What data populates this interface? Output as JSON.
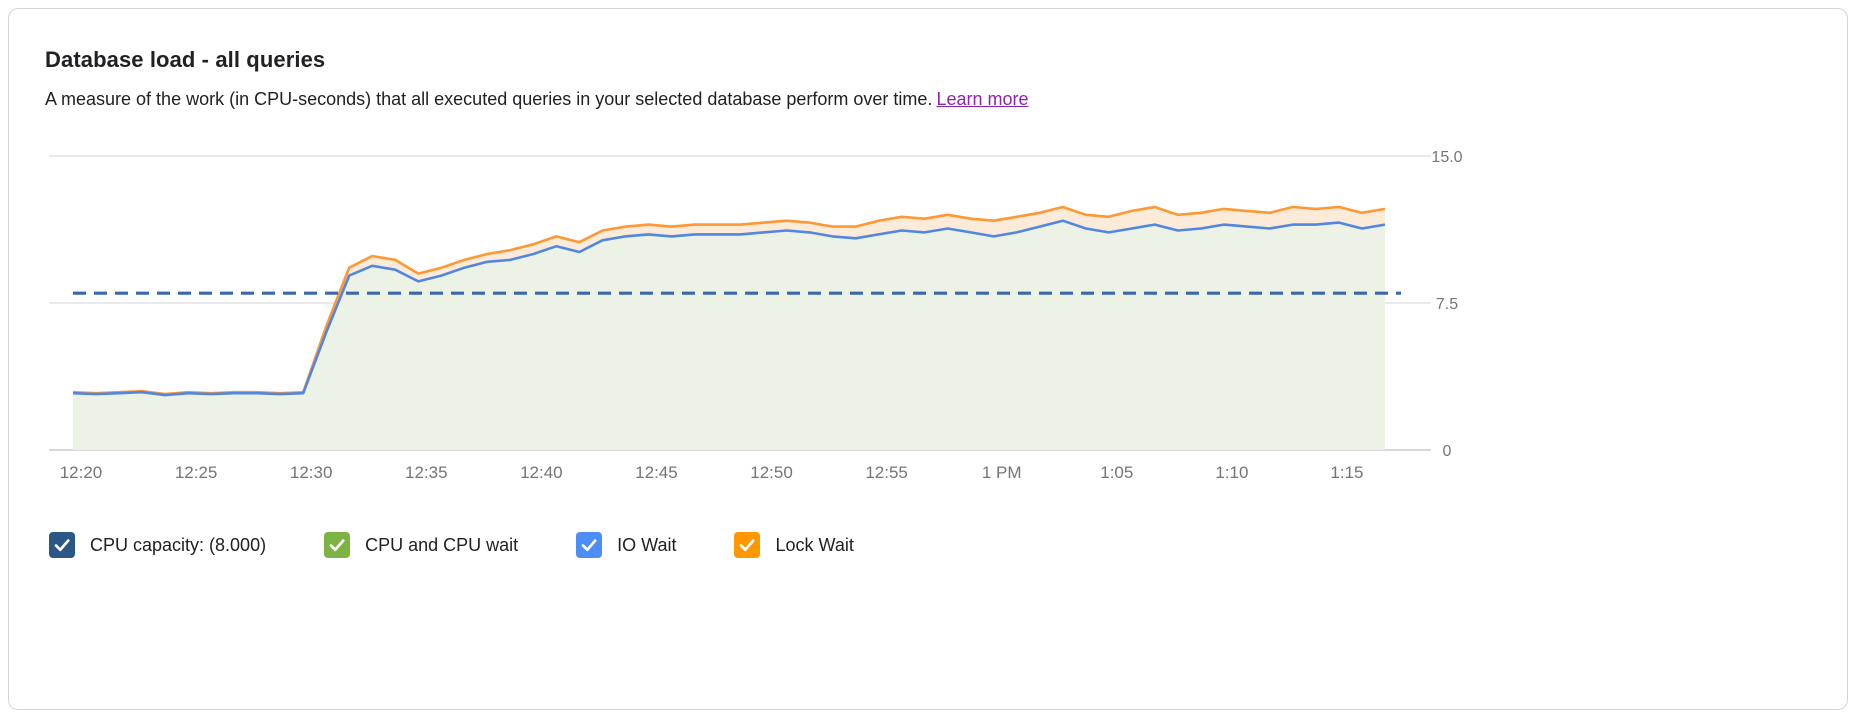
{
  "header": {
    "title": "Database load - all queries",
    "subtitle": "A measure of the work (in CPU-seconds) that all executed queries in your selected database perform over time.",
    "learn_more_label": "Learn more"
  },
  "colors": {
    "grid": "#e3e3e3",
    "baseline": "#cccccc",
    "axis_text": "#757575",
    "capacity_line": "#3a68ad",
    "io_wait_line": "#5187e0",
    "lock_wait_line": "#ff9833",
    "cpu_area_fill": "#edf2e6",
    "lock_area_fill": "#fdebd9"
  },
  "legend": {
    "items": [
      {
        "id": "cpu-capacity",
        "label": "CPU capacity: (8.000)",
        "color": "#2a5783",
        "checked": true
      },
      {
        "id": "cpu-and-cpu-wait",
        "label": "CPU and CPU wait",
        "color": "#7cb342",
        "checked": true
      },
      {
        "id": "io-wait",
        "label": "IO Wait",
        "color": "#4c8df6",
        "checked": true
      },
      {
        "id": "lock-wait",
        "label": "Lock Wait",
        "color": "#ff9800",
        "checked": true
      }
    ]
  },
  "chart_data": {
    "type": "area",
    "title": "Database load - all queries",
    "ylabel": "",
    "xlabel": "",
    "ylim": [
      0,
      15
    ],
    "yticks": [
      0,
      7.5,
      15
    ],
    "ytick_labels": [
      "0",
      "7.5",
      "15.0"
    ],
    "x_tick_labels": [
      "12:20",
      "12:25",
      "12:30",
      "12:35",
      "12:40",
      "12:45",
      "12:50",
      "12:55",
      "1 PM",
      "1:05",
      "1:10",
      "1:15"
    ],
    "x_tick_indices": [
      0,
      5,
      10,
      15,
      20,
      25,
      30,
      35,
      40,
      45,
      50,
      55
    ],
    "minutes_per_point": 1,
    "capacity_line": 8.0,
    "grid": "horizontal",
    "legend_position": "bottom",
    "series": [
      {
        "name": "IO Wait (blue line, cumulative stack top)",
        "values": [
          2.9,
          2.85,
          2.9,
          2.95,
          2.8,
          2.9,
          2.85,
          2.9,
          2.9,
          2.85,
          2.9,
          6.0,
          8.9,
          9.4,
          9.2,
          8.6,
          8.9,
          9.3,
          9.6,
          9.7,
          10.0,
          10.4,
          10.1,
          10.7,
          10.9,
          11.0,
          10.9,
          11.0,
          11.0,
          11.0,
          11.1,
          11.2,
          11.1,
          10.9,
          10.8,
          11.0,
          11.2,
          11.1,
          11.3,
          11.1,
          10.9,
          11.1,
          11.4,
          11.7,
          11.3,
          11.1,
          11.3,
          11.5,
          11.2,
          11.3,
          11.5,
          11.4,
          11.3,
          11.5,
          11.5,
          11.6,
          11.3,
          11.5
        ]
      },
      {
        "name": "Lock Wait (orange line, cumulative stack top)",
        "values": [
          2.95,
          2.9,
          2.95,
          3.0,
          2.85,
          2.95,
          2.9,
          2.95,
          2.95,
          2.9,
          2.95,
          6.3,
          9.3,
          9.9,
          9.7,
          9.0,
          9.3,
          9.7,
          10.0,
          10.2,
          10.5,
          10.9,
          10.6,
          11.2,
          11.4,
          11.5,
          11.4,
          11.5,
          11.5,
          11.5,
          11.6,
          11.7,
          11.6,
          11.4,
          11.4,
          11.7,
          11.9,
          11.8,
          12.0,
          11.8,
          11.7,
          11.9,
          12.1,
          12.4,
          12.0,
          11.9,
          12.2,
          12.4,
          12.0,
          12.1,
          12.3,
          12.2,
          12.1,
          12.4,
          12.3,
          12.4,
          12.1,
          12.3
        ]
      }
    ]
  }
}
